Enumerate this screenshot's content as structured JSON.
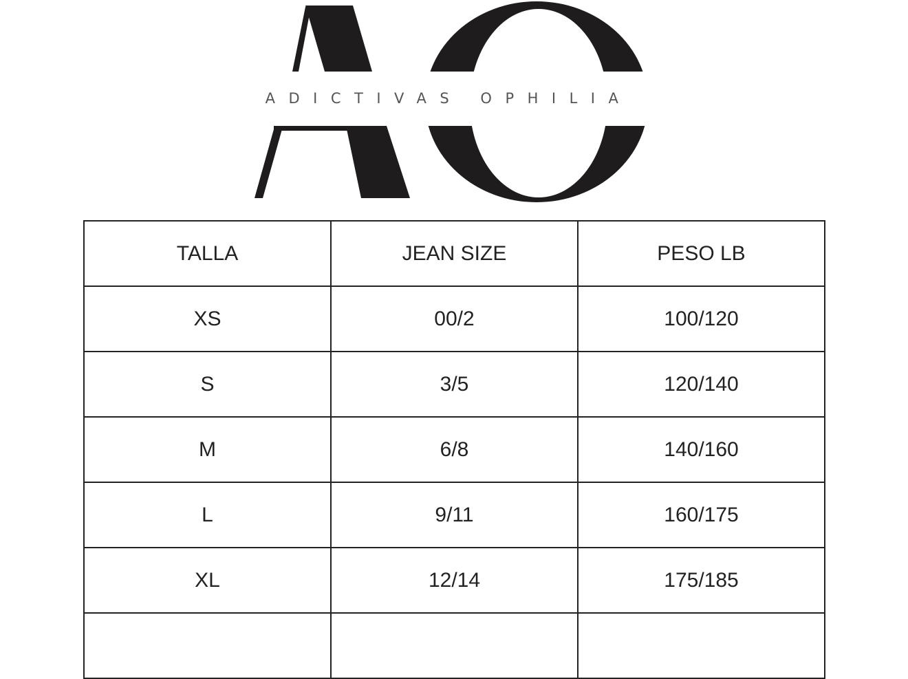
{
  "logo": {
    "monogram": "AO",
    "brand_name": "ADICTIVAS OPHILIA"
  },
  "table": {
    "headers": [
      "TALLA",
      "JEAN SIZE",
      "PESO LB"
    ],
    "rows": [
      [
        "XS",
        "00/2",
        "100/120"
      ],
      [
        "S",
        "3/5",
        "120/140"
      ],
      [
        "M",
        "6/8",
        "140/160"
      ],
      [
        "L",
        "9/11",
        "160/175"
      ],
      [
        "XL",
        "12/14",
        "175/185"
      ],
      [
        "",
        "",
        ""
      ]
    ]
  }
}
